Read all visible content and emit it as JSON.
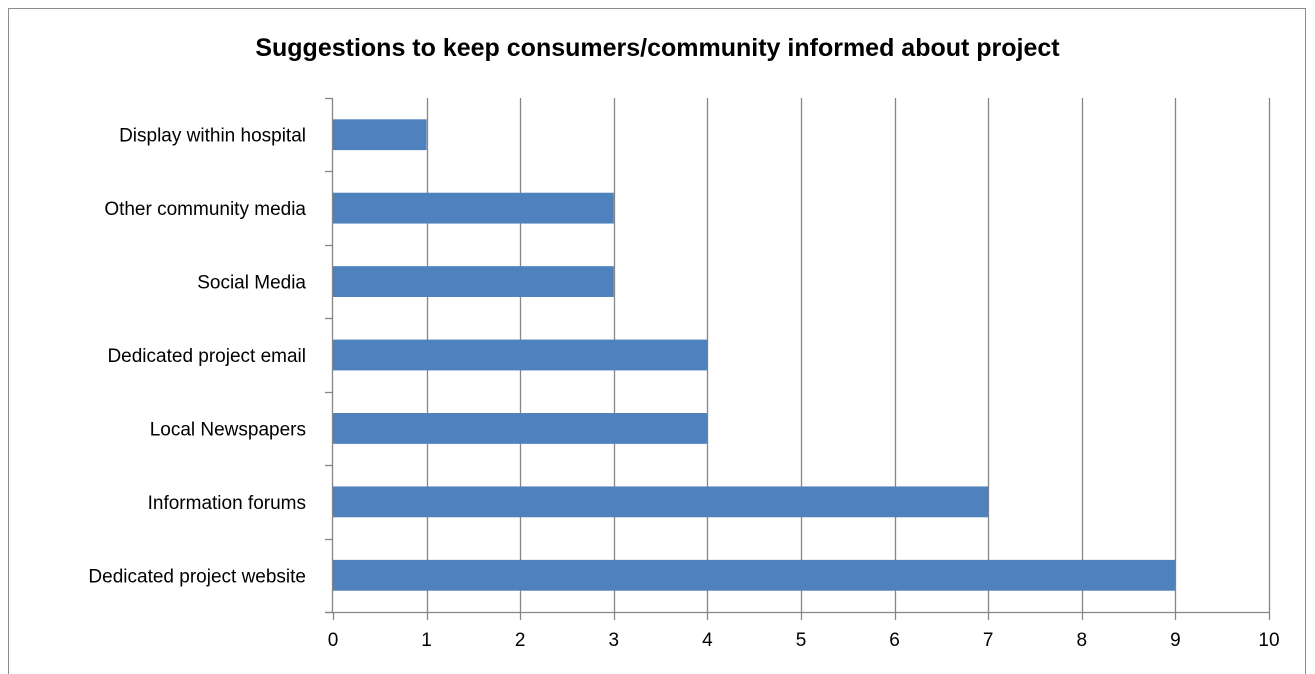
{
  "chart_data": {
    "type": "bar",
    "orientation": "horizontal",
    "title": "Suggestions to keep consumers/community informed about project",
    "categories": [
      "Display within hospital",
      "Other community media",
      "Social Media",
      "Dedicated project email",
      "Local Newspapers",
      "Information forums",
      "Dedicated project website"
    ],
    "values": [
      1,
      3,
      3,
      4,
      4,
      7,
      9
    ],
    "xlim": [
      0,
      10
    ],
    "xticks": [
      0,
      1,
      2,
      3,
      4,
      5,
      6,
      7,
      8,
      9,
      10
    ],
    "xlabel": "",
    "ylabel": "",
    "grid": "vertical",
    "legend": "none",
    "bar_color": "#4f81bd",
    "grid_color": "#868686"
  }
}
